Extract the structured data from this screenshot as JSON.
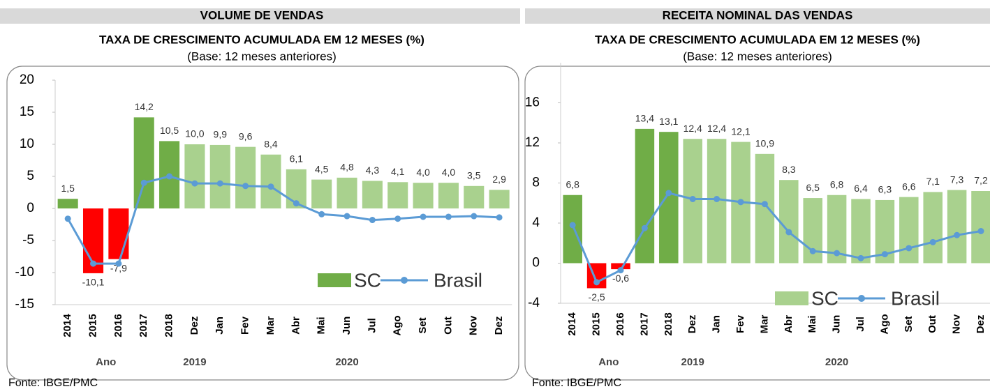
{
  "chart_data": [
    {
      "type": "combo",
      "title": "VOLUME DE VENDAS",
      "subtitle": "TAXA DE CRESCIMENTO ACUMULADA EM 12 MESES (%)",
      "note": "(Base: 12 meses anteriores)",
      "source": "Fonte: IBGE/PMC",
      "categories": [
        "2014",
        "2015",
        "2016",
        "2017",
        "2018",
        "Dez",
        "Jan",
        "Fev",
        "Mar",
        "Abr",
        "Mai",
        "Jun",
        "Jul",
        "Ago",
        "Set",
        "Out",
        "Nov",
        "Dez"
      ],
      "groups": [
        "Ano",
        "2019",
        "2020"
      ],
      "ylim": [
        -15,
        20
      ],
      "yticks": [
        -15,
        -10,
        -5,
        0,
        5,
        10,
        15,
        20
      ],
      "series": [
        {
          "name": "SC",
          "kind": "bar",
          "color": "#70ad47",
          "colors": [
            "#70ad47",
            "#ff0000",
            "#ff0000",
            "#70ad47",
            "#70ad47",
            "#a9d18e",
            "#a9d18e",
            "#a9d18e",
            "#a9d18e",
            "#a9d18e",
            "#a9d18e",
            "#a9d18e",
            "#a9d18e",
            "#a9d18e",
            "#a9d18e",
            "#a9d18e",
            "#a9d18e",
            "#a9d18e"
          ],
          "values": [
            1.5,
            -10.1,
            -7.9,
            14.2,
            10.5,
            10.0,
            9.9,
            9.6,
            8.4,
            6.1,
            4.5,
            4.8,
            4.3,
            4.1,
            4.0,
            4.0,
            3.5,
            2.9
          ],
          "value_labels": [
            "1,5",
            "-10,1",
            "-7,9",
            "14,2",
            "10,5",
            "10,0",
            "9,9",
            "9,6",
            "8,4",
            "6,1",
            "4,5",
            "4,8",
            "4,3",
            "4,1",
            "4,0",
            "4,0",
            "3,5",
            "2,9"
          ]
        },
        {
          "name": "Brasil",
          "kind": "line",
          "color": "#5b9bd5",
          "values": [
            -1.6,
            -8.6,
            -8.6,
            4.0,
            5.0,
            3.9,
            3.9,
            3.5,
            3.4,
            0.8,
            -0.9,
            -1.2,
            -1.8,
            -1.6,
            -1.3,
            -1.3,
            -1.2,
            -1.4
          ]
        }
      ]
    },
    {
      "type": "combo",
      "title": "RECEITA NOMINAL DAS VENDAS",
      "subtitle": "TAXA DE CRESCIMENTO ACUMULADA EM 12 MESES (%)",
      "note": "(Base: 12 meses anteriores)",
      "source": "Fonte: IBGE/PMC",
      "categories": [
        "2014",
        "2015",
        "2016",
        "2017",
        "2018",
        "Dez",
        "Jan",
        "Fev",
        "Mar",
        "Abr",
        "Mai",
        "Jun",
        "Jul",
        "Ago",
        "Set",
        "Out",
        "Nov",
        "Dez"
      ],
      "groups": [
        "Ano",
        "2019",
        "2020"
      ],
      "ylim": [
        -4,
        20
      ],
      "yticks": [
        -4,
        0,
        4,
        8,
        12,
        16
      ],
      "series": [
        {
          "name": "SC",
          "kind": "bar",
          "color": "#a9d18e",
          "colors": [
            "#70ad47",
            "#ff0000",
            "#ff0000",
            "#70ad47",
            "#70ad47",
            "#a9d18e",
            "#a9d18e",
            "#a9d18e",
            "#a9d18e",
            "#a9d18e",
            "#a9d18e",
            "#a9d18e",
            "#a9d18e",
            "#a9d18e",
            "#a9d18e",
            "#a9d18e",
            "#a9d18e",
            "#a9d18e"
          ],
          "values": [
            6.8,
            -2.5,
            -0.6,
            13.4,
            13.1,
            12.4,
            12.4,
            12.1,
            10.9,
            8.3,
            6.5,
            6.8,
            6.4,
            6.3,
            6.6,
            7.1,
            7.3,
            7.2
          ],
          "value_labels": [
            "6,8",
            "-2,5",
            "-0,6",
            "13,4",
            "13,1",
            "12,4",
            "12,4",
            "12,1",
            "10,9",
            "8,3",
            "6,5",
            "6,8",
            "6,4",
            "6,3",
            "6,6",
            "7,1",
            "7,3",
            "7,2"
          ]
        },
        {
          "name": "Brasil",
          "kind": "line",
          "color": "#5b9bd5",
          "values": [
            3.8,
            -1.9,
            -0.7,
            3.5,
            7.0,
            6.4,
            6.4,
            6.1,
            5.9,
            3.1,
            1.2,
            1.0,
            0.5,
            0.9,
            1.5,
            2.1,
            2.8,
            3.2
          ]
        }
      ]
    }
  ]
}
